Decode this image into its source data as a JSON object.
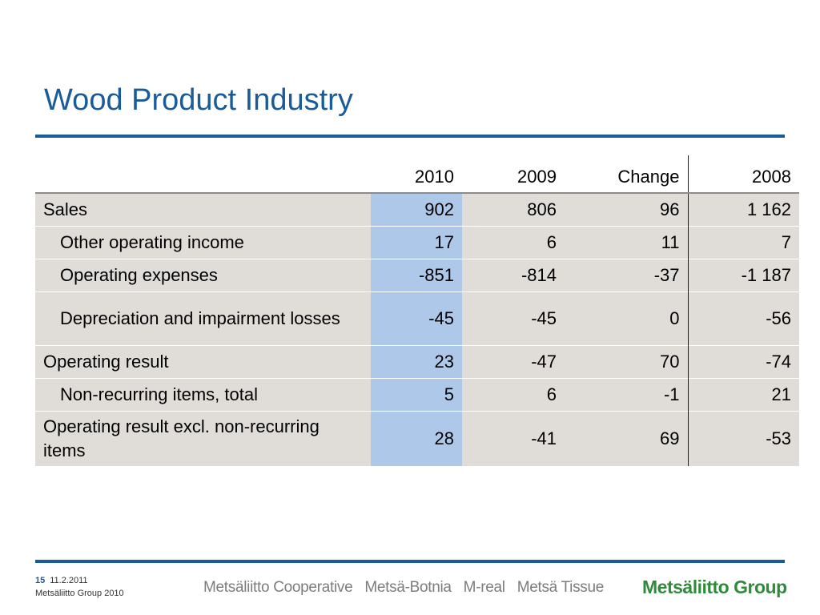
{
  "slide": {
    "title": "Wood Product Industry"
  },
  "table": {
    "headers": [
      "",
      "2010",
      "2009",
      "Change",
      "2008"
    ],
    "rows": [
      {
        "label": "Sales",
        "indent": false,
        "values": [
          "902",
          "806",
          "96",
          "1 162"
        ]
      },
      {
        "label": "Other operating income",
        "indent": true,
        "values": [
          "17",
          "6",
          "11",
          "7"
        ]
      },
      {
        "label": "Operating expenses",
        "indent": true,
        "values": [
          "-851",
          "-814",
          "-37",
          "-1 187"
        ]
      },
      {
        "label": "Depreciation and impairment losses",
        "indent": true,
        "values": [
          "-45",
          "-45",
          "0",
          "-56"
        ]
      },
      {
        "label": "Operating result",
        "indent": false,
        "values": [
          "23",
          "-47",
          "70",
          "-74"
        ]
      },
      {
        "label": "Non-recurring items, total",
        "indent": true,
        "values": [
          "5",
          "6",
          "-1",
          "21"
        ]
      },
      {
        "label": "Operating result excl. non-recurring items",
        "indent": false,
        "values": [
          "28",
          "-41",
          "69",
          "-53"
        ]
      }
    ]
  },
  "footer": {
    "page_number": "15",
    "date": "11.2.2011",
    "copyright": "Metsäliitto Group 2010",
    "brands": [
      "Metsäliitto Cooperative",
      "Metsä-Botnia",
      "M-real",
      "Metsä Tissue"
    ],
    "logo_text": "Metsäliitto Group"
  },
  "colors": {
    "title": "#1a5b9a",
    "rule": "#1a5b9a",
    "row_bg": "#e0ddd8",
    "current_year_bg": "#aec8ea",
    "logo": "#2f8a3a"
  }
}
